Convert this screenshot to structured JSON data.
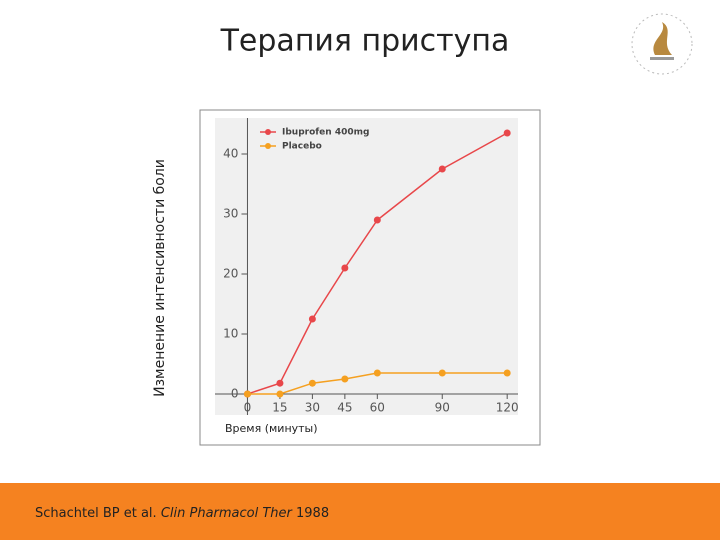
{
  "title": "Терапия приступа",
  "chart_data": {
    "type": "line",
    "y_label": "Изменение интенсивности боли",
    "x_label": "Время (минуты)",
    "x": [
      0,
      15,
      30,
      45,
      60,
      90,
      120
    ],
    "series": [
      {
        "name": "Ibuprofen 400mg",
        "color": "#e8474a",
        "values": [
          0,
          1.8,
          12.5,
          21,
          29,
          37.5,
          43.5
        ]
      },
      {
        "name": "Placebo",
        "color": "#f5a020",
        "values": [
          0,
          0,
          1.8,
          2.5,
          3.5,
          3.5,
          3.5
        ]
      }
    ],
    "xlim": [
      -15,
      125
    ],
    "xticks": [
      0,
      15,
      30,
      45,
      60,
      90,
      120
    ],
    "ylim": [
      -3.5,
      46
    ],
    "yticks": [
      0,
      10,
      20,
      30,
      40
    ],
    "legend": "top-left"
  },
  "footer": {
    "authors": "Schachtel BP et al.",
    "journal": "Clin Pharmacol Ther",
    "year": "1988"
  }
}
